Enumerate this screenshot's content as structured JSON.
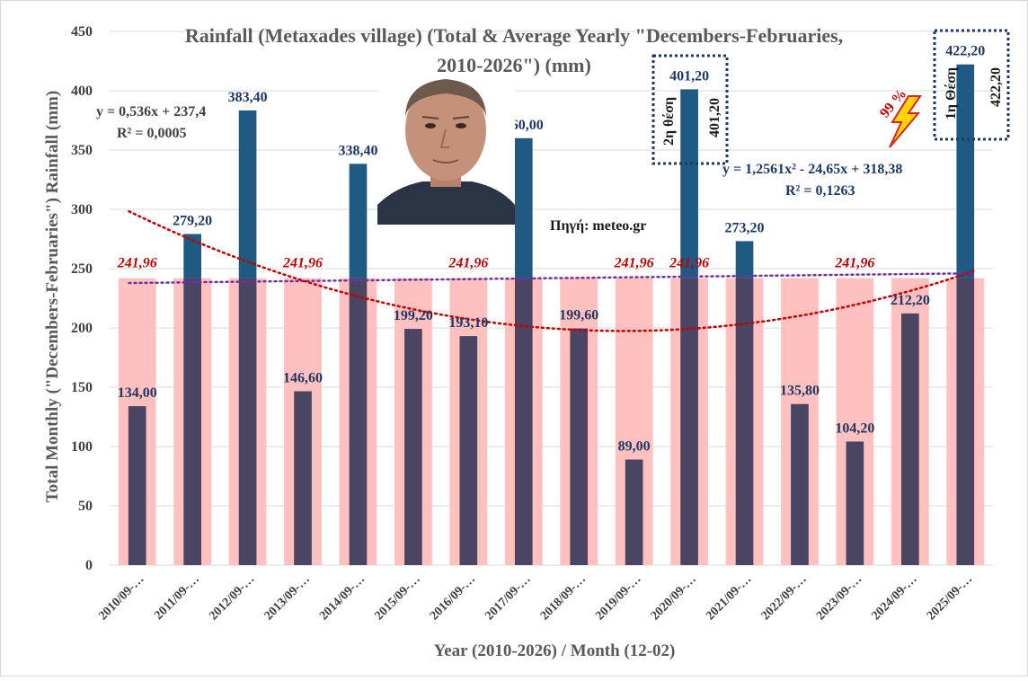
{
  "chart_data": {
    "type": "bar",
    "title": "Rainfall (Metaxades village) (Total & Average Yearly \"Decembers-Februaries, 2010-2026\") (mm)",
    "title_lines": [
      "Rainfall (Metaxades village) (Total & Average Yearly \"Decembers-Februaries,",
      "2010-2026\") (mm)"
    ],
    "xlabel": "Year (2010-2026) / Month (12-02)",
    "ylabel": "Total Monthly (\"Decembers-Februaries\") Rainfall (mm)",
    "ylim": [
      0,
      450
    ],
    "yticks": [
      0,
      50,
      100,
      150,
      200,
      250,
      300,
      350,
      400,
      450
    ],
    "grid": true,
    "categories": [
      "2010/09-…",
      "2011/09-…",
      "2012/09-…",
      "2013/09-…",
      "2014/09-…",
      "2015/09-…",
      "2016/09-…",
      "2017/09-…",
      "2018/09-…",
      "2019/09-…",
      "2020/09-…",
      "2021/09-…",
      "2022/09-…",
      "2023/09-…",
      "2024/09-…",
      "2025/09-…"
    ],
    "series": [
      {
        "values": [
          134.0,
          279.2,
          383.4,
          146.6,
          338.4,
          199.2,
          193.1,
          360.0,
          199.6,
          89.0,
          401.2,
          273.2,
          135.8,
          104.2,
          212.2,
          422.2
        ],
        "labels": [
          "134,00",
          "279,20",
          "383,40",
          "146,60",
          "338,40",
          "199,20",
          "193,10",
          "360,00",
          "199,60",
          "89,00",
          "401,20",
          "273,20",
          "135,80",
          "104,20",
          "212,20",
          "422,20"
        ],
        "color": "#1f5a82",
        "color_below_average": "#4a4562"
      },
      {
        "values": [
          241.96,
          241.96,
          241.96,
          241.96,
          241.96,
          241.96,
          241.96,
          241.96,
          241.96,
          241.96,
          241.96,
          241.96,
          241.96,
          241.96,
          241.96,
          241.96
        ],
        "labels": [
          "241,96",
          "241,96",
          "241,96",
          "241,96",
          "241,96",
          "241,96",
          "241,96",
          "241,96",
          "241,96",
          "241,96",
          "241,96",
          "241,96",
          "241,96",
          "241,96",
          "241,96",
          "241,96"
        ],
        "label_shown_at": [
          0,
          3,
          6,
          9,
          10,
          13
        ],
        "color": "#ffc0c0"
      }
    ],
    "trendlines": [
      {
        "kind": "linear",
        "equation": "y = 0,536x + 237,4",
        "r2": "R² = 0,0005",
        "slope": 0.536,
        "intercept": 237.4,
        "color": "#7030a0"
      },
      {
        "kind": "polynomial",
        "equation": "y = 1,2561x² - 24,65x + 318,38",
        "r2": "R² = 0,1263",
        "a": 1.2561,
        "b": -24.65,
        "c": 318.38,
        "color": "#c00000"
      }
    ],
    "annotations": {
      "source": "Πηγή: meteo.gr",
      "percent": "99 %",
      "rank_second_text": "2η θέση",
      "rank_second_value": "401,20",
      "rank_first_text": "1η Θέση",
      "rank_first_value": "422,20"
    }
  },
  "colors": {
    "bar_above": "#1f5a82",
    "bar_below": "#4a4562",
    "average_bar": "#ffc0c0",
    "label": "#1f3864",
    "average_label": "#c00000",
    "linear_trend": "#7030a0",
    "poly_trend": "#c00000",
    "box_border": "#1f3864"
  },
  "icons": {
    "photo": "portrait-photo",
    "lightning": "lightning-bolt-icon"
  }
}
